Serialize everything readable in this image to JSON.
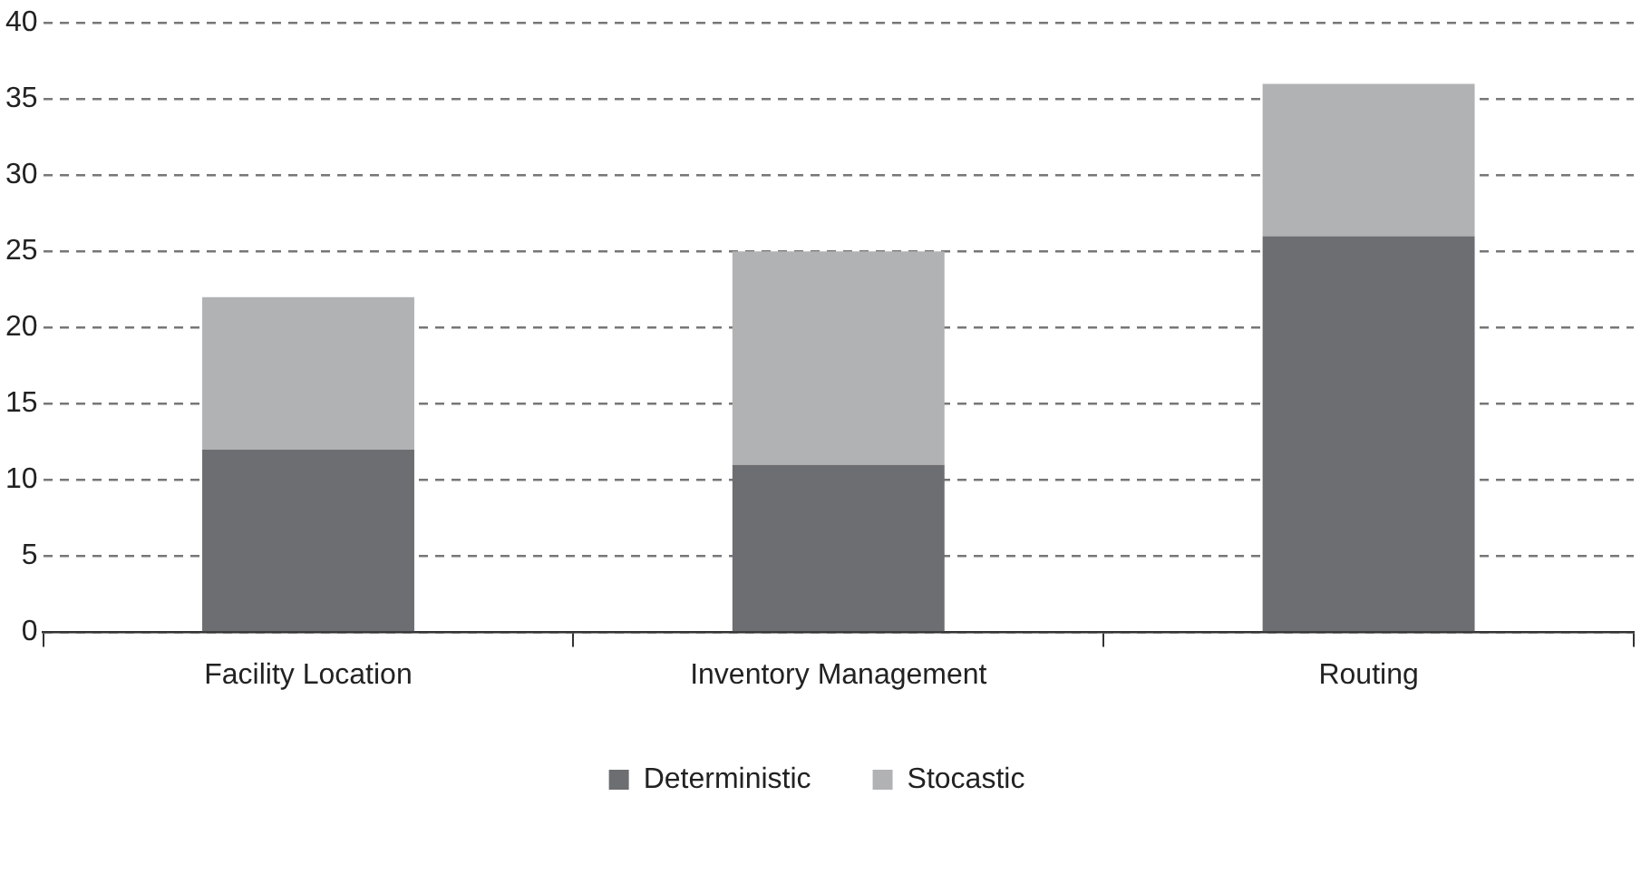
{
  "chart_data": {
    "type": "bar",
    "categories": [
      "Facility Location",
      "Inventory Management",
      "Routing"
    ],
    "stacked": true,
    "series": [
      {
        "name": "Deterministic",
        "color": "#6d6e71",
        "values": [
          12,
          11,
          26
        ]
      },
      {
        "name": "Stocastic",
        "color": "#b1b2b4",
        "values": [
          10,
          14,
          10
        ]
      }
    ],
    "ylim": [
      0,
      40
    ],
    "yticks": [
      0,
      5,
      10,
      15,
      20,
      25,
      30,
      35,
      40
    ],
    "grid": "y",
    "legend": "bottom"
  }
}
